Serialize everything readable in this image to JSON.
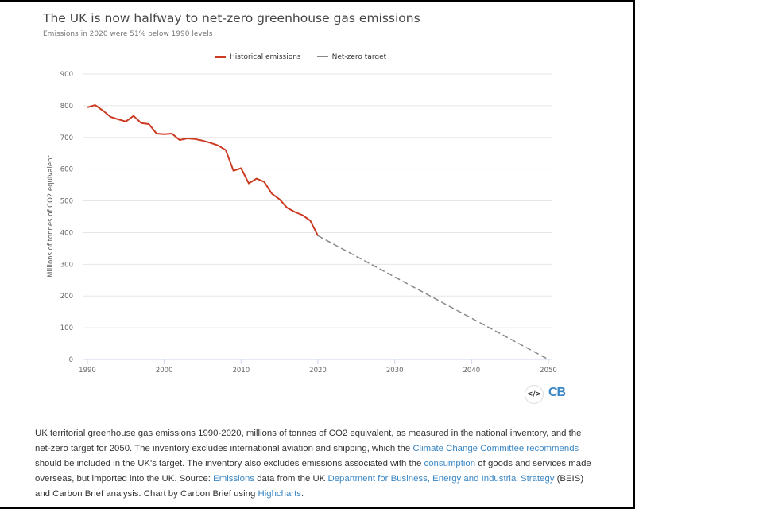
{
  "chart_data": {
    "type": "line",
    "title": "The UK is now halfway to net-zero greenhouse gas emissions",
    "subtitle": "Emissions in 2020 were 51% below 1990 levels",
    "ylabel": "Millions of tonnes of CO2 equivalent",
    "xlabel": "",
    "xlim": [
      1990,
      2050
    ],
    "ylim": [
      0,
      900
    ],
    "x_ticks": [
      1990,
      2000,
      2010,
      2020,
      2030,
      2040,
      2050
    ],
    "y_ticks": [
      0,
      100,
      200,
      300,
      400,
      500,
      600,
      700,
      800,
      900
    ],
    "grid": "horizontal",
    "legend_position": "top-center",
    "series": [
      {
        "name": "Historical emissions",
        "color": "#cc3a21",
        "dash": false,
        "x": [
          1990,
          1991,
          1992,
          1993,
          1994,
          1995,
          1996,
          1997,
          1998,
          1999,
          2000,
          2001,
          2002,
          2003,
          2004,
          2005,
          2006,
          2007,
          2008,
          2009,
          2010,
          2011,
          2012,
          2013,
          2014,
          2015,
          2016,
          2017,
          2018,
          2019,
          2020
        ],
        "values": [
          795,
          802,
          785,
          765,
          757,
          750,
          768,
          745,
          742,
          712,
          710,
          712,
          692,
          697,
          695,
          690,
          683,
          675,
          660,
          595,
          603,
          555,
          570,
          560,
          523,
          505,
          478,
          465,
          455,
          438,
          390
        ]
      },
      {
        "name": "Net-zero target",
        "color": "#888888",
        "dash": true,
        "x": [
          2020,
          2050
        ],
        "values": [
          390,
          0
        ]
      }
    ]
  },
  "embed_icon": "code-embed-icon",
  "logo": "CB",
  "caption": {
    "t1": "UK territorial greenhouse gas emissions 1990-2020, millions of tonnes of CO2 equivalent, as measured in the national inventory, and the net-zero target for 2050. The inventory excludes international aviation and shipping, which the ",
    "l1": "Climate Change Committee recommends",
    "t2": " should be included in the UK's target. The inventory also excludes emissions associated with the ",
    "l2": "consumption",
    "t3": " of goods and services made overseas, but imported into the UK. Source: ",
    "l3": "Emissions",
    "t4": " data from the UK ",
    "l4": "Department for Business, Energy and Industrial Strategy",
    "t5": " (BEIS) and Carbon Brief analysis. Chart by Carbon Brief using ",
    "l5": "Highcharts",
    "t6": "."
  }
}
